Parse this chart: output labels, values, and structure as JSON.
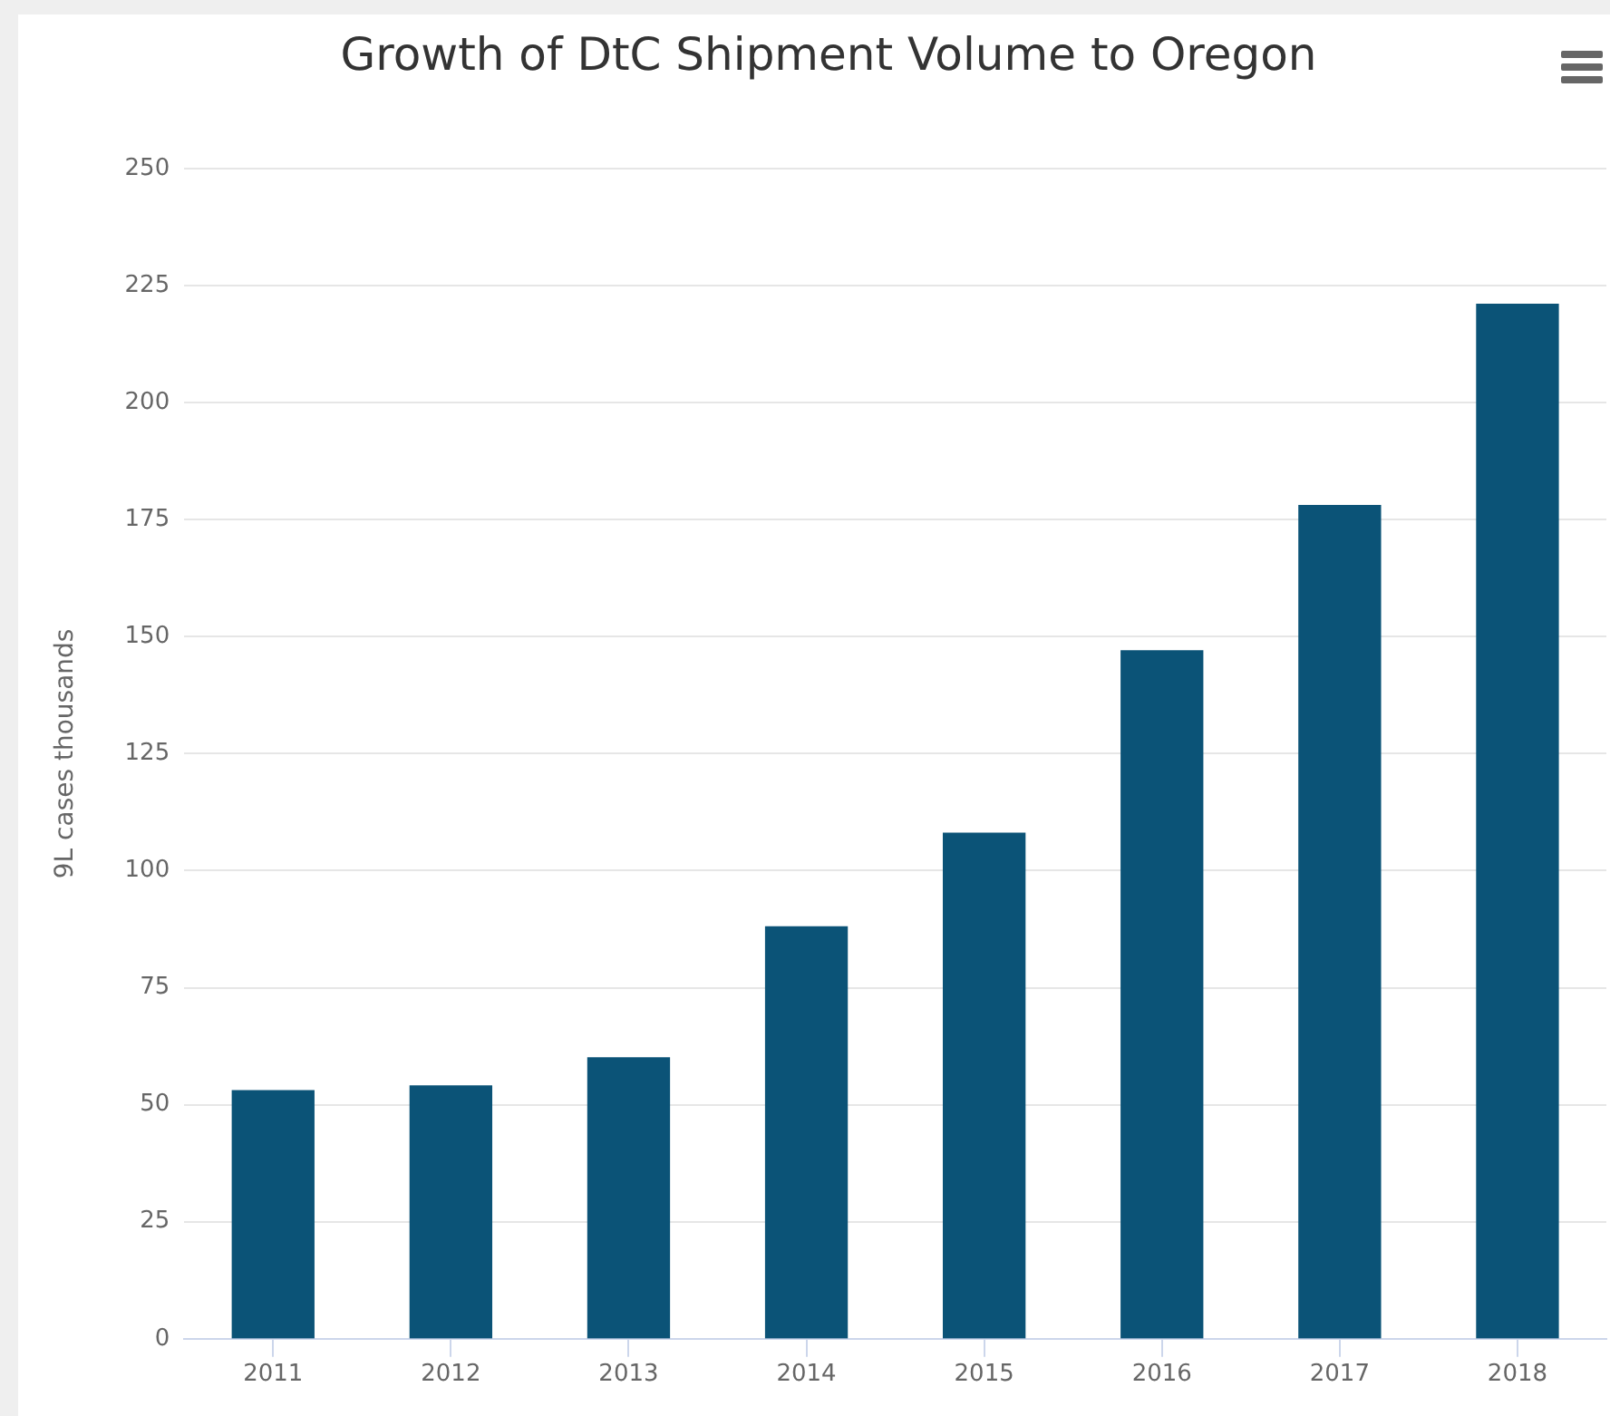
{
  "chart_data": {
    "type": "bar",
    "title": "Growth of DtC Shipment Volume to Oregon",
    "ylabel": "9L cases thousands",
    "categories": [
      "2011",
      "2012",
      "2013",
      "2014",
      "2015",
      "2016",
      "2017",
      "2018"
    ],
    "values": [
      53,
      54,
      60,
      88,
      108,
      147,
      178,
      221
    ],
    "color": "#0b5377",
    "ylim": [
      0,
      250
    ],
    "yticks": [
      0,
      25,
      50,
      75,
      100,
      125,
      150,
      175,
      200,
      225,
      250
    ],
    "grid": "y"
  }
}
